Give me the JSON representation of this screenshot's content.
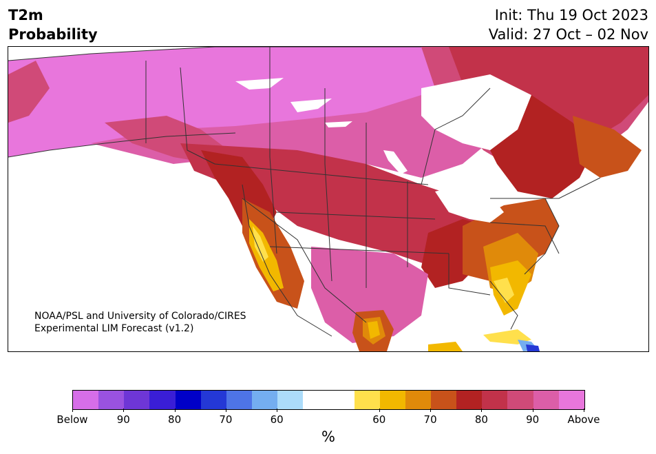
{
  "header": {
    "title_line1": "T2m",
    "title_line2": "Probability",
    "init": "Init: Thu 19 Oct 2023",
    "valid": "Valid: 27 Oct – 02 Nov"
  },
  "credit": {
    "line1": "NOAA/PSL and University of Colorado/CIRES",
    "line2": "Experimental LIM Forecast (v1.2)"
  },
  "colorbar": {
    "unit": "%",
    "colors": [
      "#d66ee8",
      "#9a52e0",
      "#6e36d6",
      "#3a1ed6",
      "#0000c8",
      "#2438d6",
      "#4e74e6",
      "#74aef0",
      "#acdcfa",
      "#ffffff",
      "#ffffff",
      "#ffe04c",
      "#f2b800",
      "#e08a0a",
      "#c8521a",
      "#b22222",
      "#c2324a",
      "#d04a78",
      "#dc5ea8",
      "#e876dc"
    ],
    "tick_labels": [
      "Below",
      "90",
      "80",
      "70",
      "60",
      "60",
      "70",
      "80",
      "90",
      "Above"
    ]
  },
  "map": {
    "background": "#ffffff",
    "palette": {
      "above": "#e876dc",
      "p90": "#dc5ea8",
      "p85": "#d04a78",
      "p80": "#c2324a",
      "p75": "#b22222",
      "p70": "#c8521a",
      "p65": "#e08a0a",
      "p60": "#f2b800",
      "p55": "#ffe04c",
      "below60": "#74aef0",
      "below70": "#4e74e6",
      "below80": "#2438d6",
      "below90": "#0000c8"
    }
  }
}
